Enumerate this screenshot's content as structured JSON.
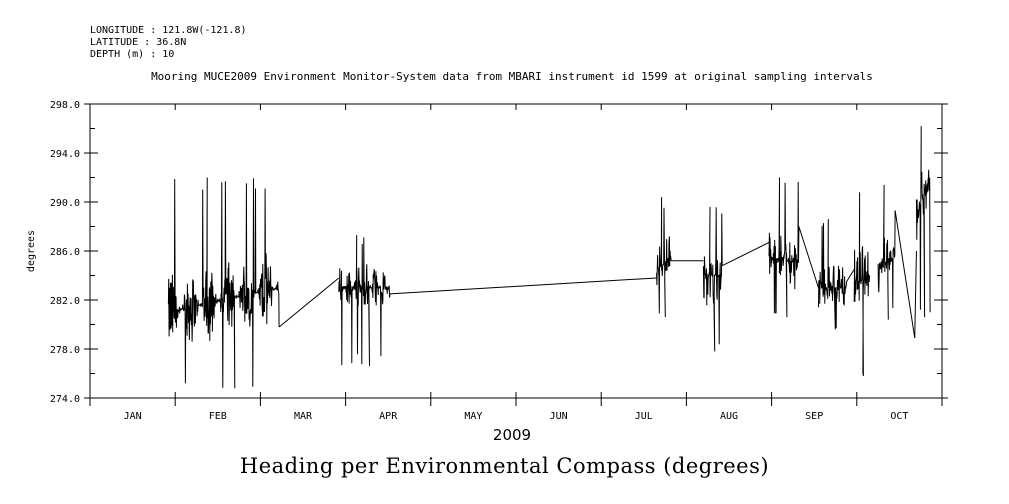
{
  "header": {
    "longitude": "LONGITUDE : 121.8W(-121.8)",
    "latitude": "LATITUDE : 36.8N",
    "depth": "DEPTH (m) : 10"
  },
  "chart_data": {
    "type": "line",
    "subtitle": "Mooring MUCE2009 Environment Monitor-System data from MBARI instrument id 1599 at original sampling intervals",
    "title": "Heading per Environmental Compass (degrees)",
    "xlabel": "2009",
    "ylabel": "degrees",
    "ylim": [
      274.0,
      298.0
    ],
    "xlim": [
      0,
      10
    ],
    "yticks": [
      "298.0",
      "294.0",
      "290.0",
      "286.0",
      "282.0",
      "278.0",
      "274.0"
    ],
    "ytick_values": [
      298,
      294,
      290,
      286,
      282,
      278,
      274
    ],
    "months": [
      "JAN",
      "FEB",
      "MAR",
      "APR",
      "MAY",
      "JUN",
      "JUL",
      "AUG",
      "SEP",
      "OCT"
    ],
    "grid": false,
    "color": "#000000",
    "segments": [
      {
        "name": "late-jan-to-mar",
        "start": 0.92,
        "end": 2.22,
        "center_start": 281.0,
        "center_end": 283.0,
        "amp": 3.2,
        "min": 274.8,
        "max": 292.0,
        "end_value": 279.8
      },
      {
        "name": "late-mar-to-apr",
        "start": 2.92,
        "end": 3.52,
        "center_start": 283.0,
        "center_end": 283.0,
        "amp": 2.0,
        "min": 276.6,
        "max": 287.3,
        "end_value": 282.5
      },
      {
        "name": "early-jul",
        "start": 6.65,
        "end": 6.82,
        "center_start": 284.5,
        "center_end": 285.5,
        "amp": 2.0,
        "min": 280.6,
        "max": 290.4,
        "end_value": 285.2
      },
      {
        "name": "late-jul-early-aug",
        "start": 7.2,
        "end": 7.42,
        "center_start": 284.0,
        "center_end": 284.0,
        "amp": 2.5,
        "min": 277.8,
        "max": 289.6,
        "end_value": 284.8
      },
      {
        "name": "late-aug-early-sep",
        "start": 7.97,
        "end": 8.32,
        "center_start": 285.5,
        "center_end": 285.0,
        "amp": 2.3,
        "min": 280.6,
        "max": 292.0,
        "end_value": 288.0
      },
      {
        "name": "mid-sep",
        "start": 8.55,
        "end": 8.88,
        "center_start": 283.0,
        "center_end": 283.0,
        "amp": 2.2,
        "min": 279.6,
        "max": 288.6,
        "end_value": 283.5
      },
      {
        "name": "late-sep",
        "start": 8.97,
        "end": 9.15,
        "center_start": 283.5,
        "center_end": 283.5,
        "amp": 3.0,
        "min": 275.8,
        "max": 290.8,
        "end_value": 284.0
      },
      {
        "name": "early-oct",
        "start": 9.25,
        "end": 9.45,
        "center_start": 284.5,
        "center_end": 285.5,
        "amp": 2.5,
        "min": 280.4,
        "max": 291.4,
        "end_value": 289.3
      },
      {
        "name": "mid-oct",
        "start": 9.7,
        "end": 9.86,
        "center_start": 289.0,
        "center_end": 292.0,
        "amp": 2.5,
        "min": 280.6,
        "max": 296.2,
        "end_value": 281.0
      }
    ],
    "connectors": [
      {
        "x1": 2.22,
        "y1": 279.8,
        "x2": 2.92,
        "y2": 283.8
      },
      {
        "x1": 3.52,
        "y1": 282.5,
        "x2": 6.65,
        "y2": 283.8
      },
      {
        "x1": 6.82,
        "y1": 285.2,
        "x2": 7.2,
        "y2": 285.2
      },
      {
        "x1": 7.42,
        "y1": 284.8,
        "x2": 7.97,
        "y2": 286.7
      },
      {
        "x1": 8.32,
        "y1": 288.0,
        "x2": 8.55,
        "y2": 283.0
      },
      {
        "x1": 8.88,
        "y1": 283.5,
        "x2": 8.97,
        "y2": 284.5
      },
      {
        "x1": 9.45,
        "y1": 289.3,
        "x2": 9.68,
        "y2": 278.9
      },
      {
        "x1": 9.68,
        "y1": 278.9,
        "x2": 9.7,
        "y2": 286.0
      }
    ]
  }
}
